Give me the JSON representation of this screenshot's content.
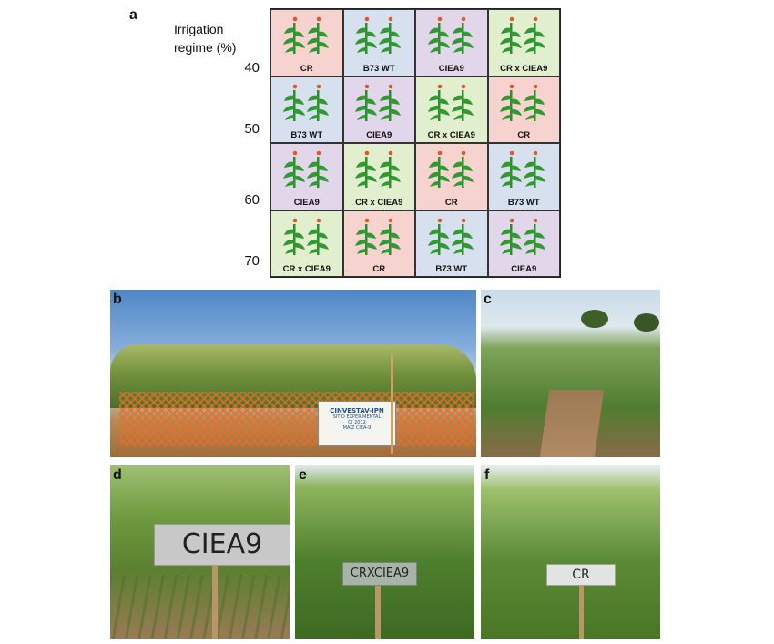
{
  "panel_a": {
    "letter": "a",
    "ylabel_line1": "Irrigation",
    "ylabel_line2": "regime (%)",
    "levels": [
      "40",
      "50",
      "60",
      "70"
    ],
    "colors": {
      "CR": "#f7d3cf",
      "B73 WT": "#d6e0ef",
      "CIEA9": "#e2d6ea",
      "CR x CIEA9": "#e2efcf"
    },
    "rows": [
      [
        "CR",
        "B73 WT",
        "CIEA9",
        "CR x CIEA9"
      ],
      [
        "B73 WT",
        "CIEA9",
        "CR x CIEA9",
        "CR"
      ],
      [
        "CIEA9",
        "CR x CIEA9",
        "CR",
        "B73 WT"
      ],
      [
        "CR x CIEA9",
        "CR",
        "B73 WT",
        "CIEA9"
      ]
    ]
  },
  "panel_b": {
    "letter": "b",
    "sign_line1": "CINVESTAV-IPN",
    "sign_line2": "SITIO EXPERIMENTAL",
    "sign_line3": "OI 2012",
    "sign_line4": "MAIZ CIEA-9"
  },
  "panel_c": {
    "letter": "c"
  },
  "panel_d": {
    "letter": "d",
    "sign": "CIEA9"
  },
  "panel_e": {
    "letter": "e",
    "sign": "CRXCIEA9"
  },
  "panel_f": {
    "letter": "f",
    "sign": "CR"
  }
}
